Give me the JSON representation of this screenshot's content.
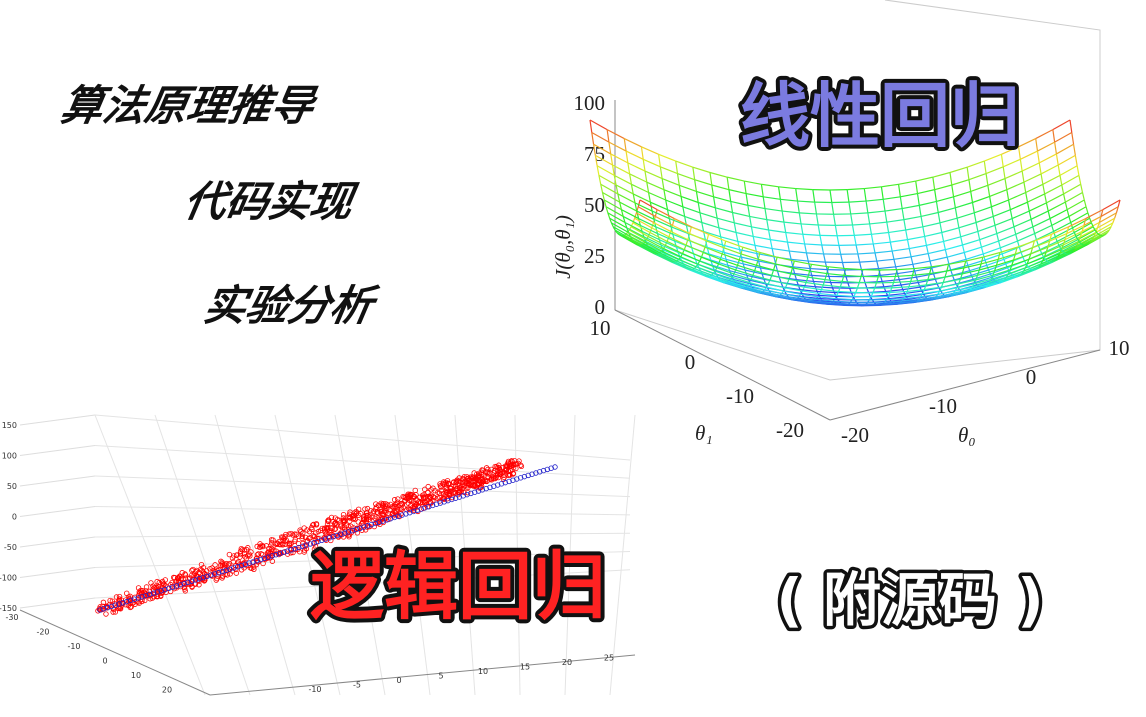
{
  "headings": [
    "算法原理推导",
    "代码实现",
    "实验分析"
  ],
  "surface_plot": {
    "title": "线性回归",
    "z_label": "J(θ₀,θ₁)",
    "x_label": "θ₁",
    "y_label": "θ₀",
    "z_ticks": [
      "100",
      "75",
      "50",
      "25",
      "0"
    ],
    "x_ticks": [
      "10",
      "0",
      "-10",
      "-20"
    ],
    "y_ticks": [
      "-20",
      "-10",
      "0",
      "10"
    ]
  },
  "scatter_plot": {
    "title": "逻辑回归",
    "z_ticks": [
      "150",
      "100",
      "50",
      "0",
      "-50",
      "-100",
      "-150"
    ],
    "x_ticks": [
      "-30",
      "-20",
      "-10",
      "0",
      "10",
      "20"
    ],
    "y_ticks": [
      "-10",
      "-5",
      "0",
      "5",
      "10",
      "15",
      "20",
      "25"
    ]
  },
  "note": "( 附源码 )"
}
